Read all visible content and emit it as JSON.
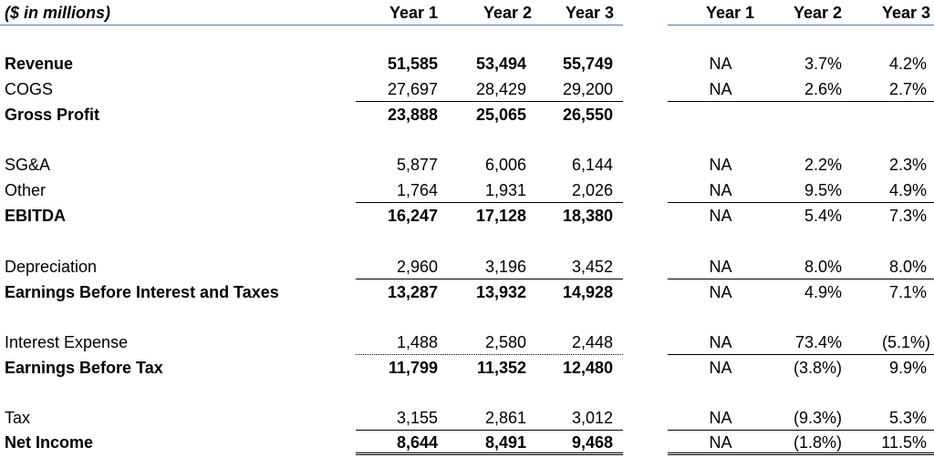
{
  "header": {
    "units": "($ in millions)",
    "years": [
      "Year 1",
      "Year 2",
      "Year 3"
    ],
    "growth_years": [
      "Year 1",
      "Year 2",
      "Year 3"
    ]
  },
  "rows": [
    {
      "label": "Revenue",
      "bold": true,
      "values": [
        "51,585",
        "53,494",
        "55,749"
      ],
      "growth": [
        "NA",
        "3.7%",
        "4.2%"
      ]
    },
    {
      "label": "COGS",
      "bold": false,
      "values": [
        "27,697",
        "28,429",
        "29,200"
      ],
      "growth": [
        "NA",
        "2.6%",
        "2.7%"
      ]
    },
    {
      "label": "Gross Profit",
      "bold": true,
      "values": [
        "23,888",
        "25,065",
        "26,550"
      ],
      "growth": [
        "",
        "",
        ""
      ]
    },
    {
      "label": "SG&A",
      "bold": false,
      "values": [
        "5,877",
        "6,006",
        "6,144"
      ],
      "growth": [
        "NA",
        "2.2%",
        "2.3%"
      ]
    },
    {
      "label": "Other",
      "bold": false,
      "values": [
        "1,764",
        "1,931",
        "2,026"
      ],
      "growth": [
        "NA",
        "9.5%",
        "4.9%"
      ]
    },
    {
      "label": "EBITDA",
      "bold": true,
      "values": [
        "16,247",
        "17,128",
        "18,380"
      ],
      "growth": [
        "NA",
        "5.4%",
        "7.3%"
      ]
    },
    {
      "label": "Depreciation",
      "bold": false,
      "values": [
        "2,960",
        "3,196",
        "3,452"
      ],
      "growth": [
        "NA",
        "8.0%",
        "8.0%"
      ]
    },
    {
      "label": "Earnings Before Interest and Taxes",
      "bold": true,
      "values": [
        "13,287",
        "13,932",
        "14,928"
      ],
      "growth": [
        "NA",
        "4.9%",
        "7.1%"
      ]
    },
    {
      "label": "Interest Expense",
      "bold": false,
      "values": [
        "1,488",
        "2,580",
        "2,448"
      ],
      "growth": [
        "NA",
        "73.4%",
        "(5.1%)"
      ]
    },
    {
      "label": "Earnings Before Tax",
      "bold": true,
      "values": [
        "11,799",
        "11,352",
        "12,480"
      ],
      "growth": [
        "NA",
        "(3.8%)",
        "9.9%"
      ]
    },
    {
      "label": "Tax",
      "bold": false,
      "values": [
        "3,155",
        "2,861",
        "3,012"
      ],
      "growth": [
        "NA",
        "(9.3%)",
        "5.3%"
      ]
    },
    {
      "label": "Net Income",
      "bold": true,
      "values": [
        "8,644",
        "8,491",
        "9,468"
      ],
      "growth": [
        "NA",
        "(1.8%)",
        "11.5%"
      ]
    }
  ]
}
